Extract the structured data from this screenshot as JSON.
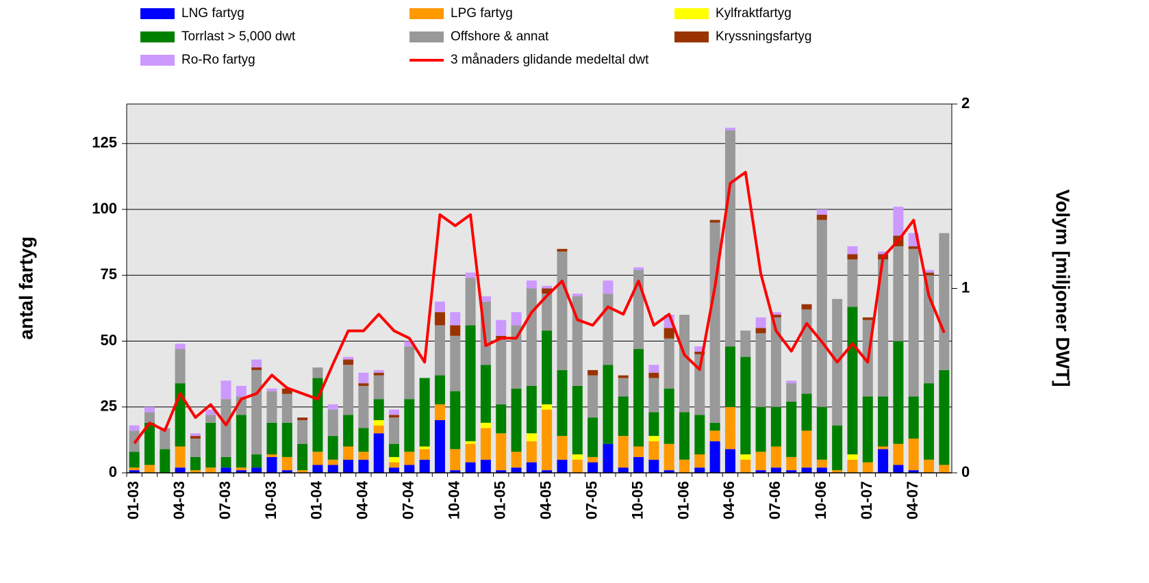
{
  "chart_data": {
    "type": "bar",
    "stacked": true,
    "grid": true,
    "y_label": "antal fartyg",
    "y2_label": "Volym [miljoner DWT]",
    "categories": [
      "01-03",
      null,
      null,
      "04-03",
      null,
      null,
      "07-03",
      null,
      null,
      "10-03",
      null,
      null,
      "01-04",
      null,
      null,
      "04-04",
      null,
      null,
      "07-04",
      null,
      null,
      "10-04",
      null,
      null,
      "01-05",
      null,
      null,
      "04-05",
      null,
      null,
      "07-05",
      null,
      null,
      "10-05",
      null,
      null,
      "01-06",
      null,
      null,
      "04-06",
      null,
      null,
      "07-06",
      null,
      null,
      "10-06",
      null,
      null,
      "01-07",
      null,
      null,
      "04-07",
      null,
      null
    ],
    "ylim": [
      0,
      140
    ],
    "yticks": [
      0,
      25,
      50,
      75,
      100,
      125
    ],
    "y2lim": [
      0,
      2
    ],
    "y2ticks": [
      0,
      1,
      2
    ],
    "series": [
      {
        "name": "LNG fartyg",
        "color": "#0000ff",
        "values": [
          1,
          0,
          0,
          2,
          0,
          0,
          2,
          1,
          2,
          6,
          1,
          0,
          3,
          3,
          5,
          5,
          15,
          2,
          3,
          5,
          20,
          1,
          4,
          5,
          1,
          2,
          4,
          1,
          5,
          0,
          4,
          11,
          2,
          6,
          5,
          1,
          0,
          2,
          12,
          9,
          0,
          1,
          2,
          1,
          2,
          2,
          0,
          0,
          0,
          9,
          3,
          1,
          0,
          0
        ]
      },
      {
        "name": "LPG fartyg",
        "color": "#ff9900",
        "values": [
          1,
          3,
          0,
          8,
          1,
          2,
          0,
          1,
          0,
          1,
          5,
          1,
          5,
          2,
          5,
          3,
          3,
          2,
          5,
          4,
          6,
          8,
          7,
          12,
          14,
          6,
          8,
          23,
          9,
          5,
          2,
          0,
          12,
          4,
          7,
          10,
          5,
          5,
          4,
          16,
          5,
          7,
          8,
          5,
          14,
          3,
          1,
          5,
          4,
          1,
          8,
          12,
          5,
          3
        ]
      },
      {
        "name": "Kylfraktfartyg",
        "color": "#ffff00",
        "values": [
          0,
          0,
          0,
          0,
          0,
          0,
          0,
          0,
          0,
          0,
          0,
          0,
          0,
          0,
          0,
          0,
          2,
          2,
          0,
          1,
          0,
          0,
          1,
          2,
          0,
          0,
          3,
          2,
          0,
          2,
          0,
          0,
          0,
          0,
          2,
          0,
          0,
          0,
          0,
          0,
          2,
          0,
          0,
          0,
          0,
          0,
          0,
          2,
          0,
          0,
          0,
          0,
          0,
          0
        ]
      },
      {
        "name": "Torrlast > 5,000 dwt",
        "color": "#008000",
        "values": [
          6,
          16,
          9,
          24,
          5,
          17,
          4,
          20,
          5,
          12,
          13,
          10,
          28,
          9,
          12,
          9,
          8,
          5,
          20,
          26,
          11,
          22,
          44,
          22,
          11,
          24,
          18,
          28,
          25,
          26,
          15,
          30,
          15,
          37,
          9,
          21,
          18,
          15,
          3,
          23,
          37,
          17,
          15,
          21,
          14,
          20,
          17,
          56,
          25,
          19,
          39,
          16,
          29,
          36
        ]
      },
      {
        "name": "Offshore & annat",
        "color": "#999999",
        "values": [
          8,
          4,
          8,
          13,
          7,
          3,
          22,
          7,
          32,
          12,
          11,
          9,
          4,
          10,
          19,
          16,
          9,
          10,
          20,
          0,
          19,
          21,
          18,
          24,
          25,
          24,
          37,
          14,
          45,
          34,
          16,
          27,
          7,
          30,
          13,
          19,
          37,
          23,
          76,
          82,
          10,
          28,
          34,
          7,
          32,
          71,
          48,
          18,
          29,
          52,
          36,
          56,
          41,
          52
        ]
      },
      {
        "name": "Kryssningsfartyg",
        "color": "#993300",
        "values": [
          0,
          0,
          0,
          0,
          1,
          0,
          0,
          0,
          1,
          0,
          2,
          1,
          0,
          0,
          2,
          1,
          1,
          1,
          0,
          0,
          5,
          4,
          0,
          0,
          1,
          0,
          0,
          2,
          1,
          0,
          2,
          0,
          1,
          0,
          2,
          4,
          0,
          1,
          1,
          0,
          0,
          2,
          1,
          0,
          2,
          2,
          0,
          2,
          1,
          2,
          4,
          1,
          1,
          0
        ]
      },
      {
        "name": "Ro-Ro fartyg",
        "color": "#cc99ff",
        "values": [
          2,
          2,
          0,
          2,
          1,
          2,
          7,
          4,
          3,
          1,
          0,
          0,
          0,
          2,
          1,
          4,
          1,
          2,
          2,
          0,
          4,
          5,
          2,
          2,
          6,
          5,
          3,
          1,
          0,
          1,
          0,
          5,
          0,
          1,
          3,
          5,
          0,
          2,
          0,
          1,
          0,
          4,
          1,
          1,
          0,
          2,
          0,
          3,
          0,
          1,
          11,
          5,
          1,
          0
        ]
      },
      {
        "name": "3 månaders glidande medeltal dwt",
        "color": "#ff0000",
        "type": "line",
        "axis": "y2",
        "values": [
          0.16,
          0.27,
          0.23,
          0.43,
          0.3,
          0.37,
          0.26,
          0.4,
          0.43,
          0.53,
          0.46,
          0.43,
          0.4,
          0.59,
          0.77,
          0.77,
          0.86,
          0.77,
          0.73,
          0.6,
          1.4,
          1.34,
          1.4,
          0.69,
          0.73,
          0.73,
          0.87,
          0.96,
          1.04,
          0.83,
          0.8,
          0.9,
          0.86,
          1.04,
          0.8,
          0.86,
          0.64,
          0.56,
          1.01,
          1.57,
          1.63,
          1.08,
          0.77,
          0.66,
          0.81,
          0.71,
          0.6,
          0.7,
          0.6,
          1.17,
          1.26,
          1.37,
          0.96,
          0.76
        ]
      }
    ]
  }
}
